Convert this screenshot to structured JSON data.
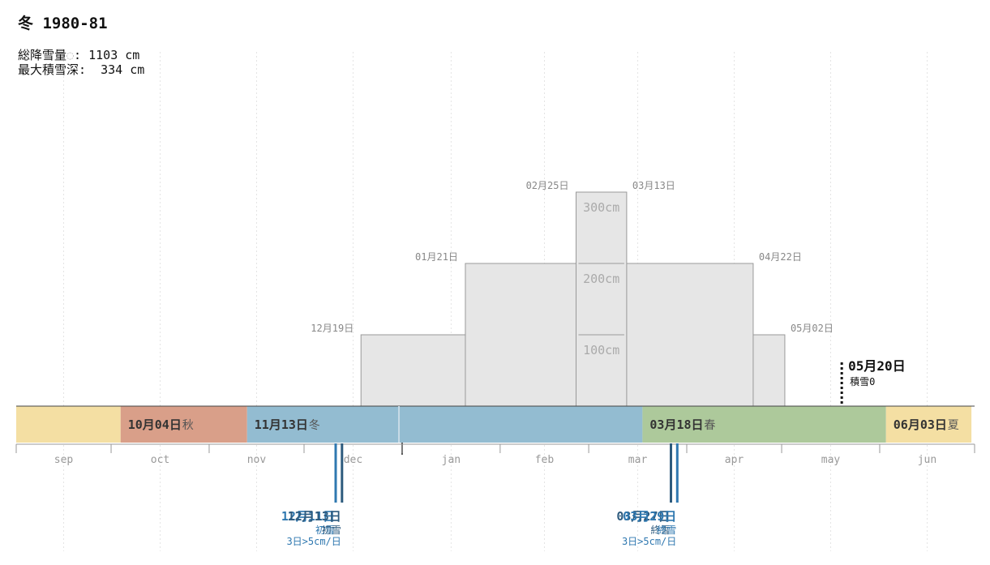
{
  "title": "冬 1980-81",
  "stats": {
    "total_snowfall_label": "総降雪量",
    "total_snowfall_mark": "◌",
    "total_snowfall_value": "1103 cm",
    "max_depth_label": "最大積雪深",
    "max_depth_value": "334 cm"
  },
  "chart_data": {
    "type": "area",
    "title": "冬 1980-81",
    "months": [
      "sep",
      "oct",
      "nov",
      "dec",
      "jan",
      "feb",
      "mar",
      "apr",
      "may",
      "jun"
    ],
    "depth_units": "cm",
    "depth_ticks": [
      {
        "value": 100,
        "label": "100cm"
      },
      {
        "value": 200,
        "label": "200cm"
      },
      {
        "value": 300,
        "label": "300cm"
      }
    ],
    "snow_depth_tiers": [
      {
        "level": 100,
        "start": "12月19日",
        "end": "05月02日",
        "start_date": "1980-12-19",
        "end_date": "1981-05-02"
      },
      {
        "level": 200,
        "start": "01月21日",
        "end": "04月22日",
        "start_date": "1981-01-21",
        "end_date": "1981-04-22"
      },
      {
        "level": 300,
        "start": "02月25日",
        "end": "03月13日",
        "start_date": "1981-02-25",
        "end_date": "1981-03-13"
      }
    ],
    "snow_zero": {
      "date_label": "05月20日",
      "label": "積雪0",
      "date": "1981-05-20"
    },
    "seasons": [
      {
        "label": "",
        "start_date": "1980-09-01",
        "end_date": "1980-10-04",
        "color": "#f4dfa3"
      },
      {
        "label": "10月04日",
        "season": "秋",
        "start_date": "1980-10-04",
        "end_date": "1980-11-13",
        "color": "#d99f89"
      },
      {
        "label": "11月13日",
        "season": "冬",
        "start_date": "1980-11-13",
        "end_date": "1981-03-18",
        "color": "#93bcd1"
      },
      {
        "label": "03月18日",
        "season": "春",
        "start_date": "1981-03-18",
        "end_date": "1981-06-03",
        "color": "#adc99b"
      },
      {
        "label": "06月03日",
        "season": "夏",
        "start_date": "1981-06-03",
        "end_date": "1981-06-30",
        "color": "#f4dfa3"
      }
    ],
    "winter_markers": [
      "1980-12-31",
      "1981-01-01"
    ],
    "first_snow": [
      {
        "date_label": "12月11日",
        "label": "初雪",
        "date": "1980-12-11",
        "color": "#2f78b0"
      },
      {
        "date_label": "12月13日",
        "label": "初雪",
        "date": "1980-12-13",
        "color": "#2e5b7e"
      }
    ],
    "first_snow_sub": "3日>5cm/日",
    "last_snow": [
      {
        "date_label": "03月27日",
        "label": "終雪",
        "date": "1981-03-27",
        "color": "#2e5b7e"
      },
      {
        "date_label": "03月29日",
        "label": "終雪",
        "date": "1981-03-29",
        "color": "#2f78b0"
      }
    ],
    "last_snow_sub": "3日>5cm/日",
    "colors": {
      "depth_fill": "#e6e6e6",
      "depth_stroke": "#999999",
      "grid": "#e4e4e4",
      "axis": "#999999",
      "tier_label": "#888888",
      "marker_text": "#2f78b0"
    }
  }
}
